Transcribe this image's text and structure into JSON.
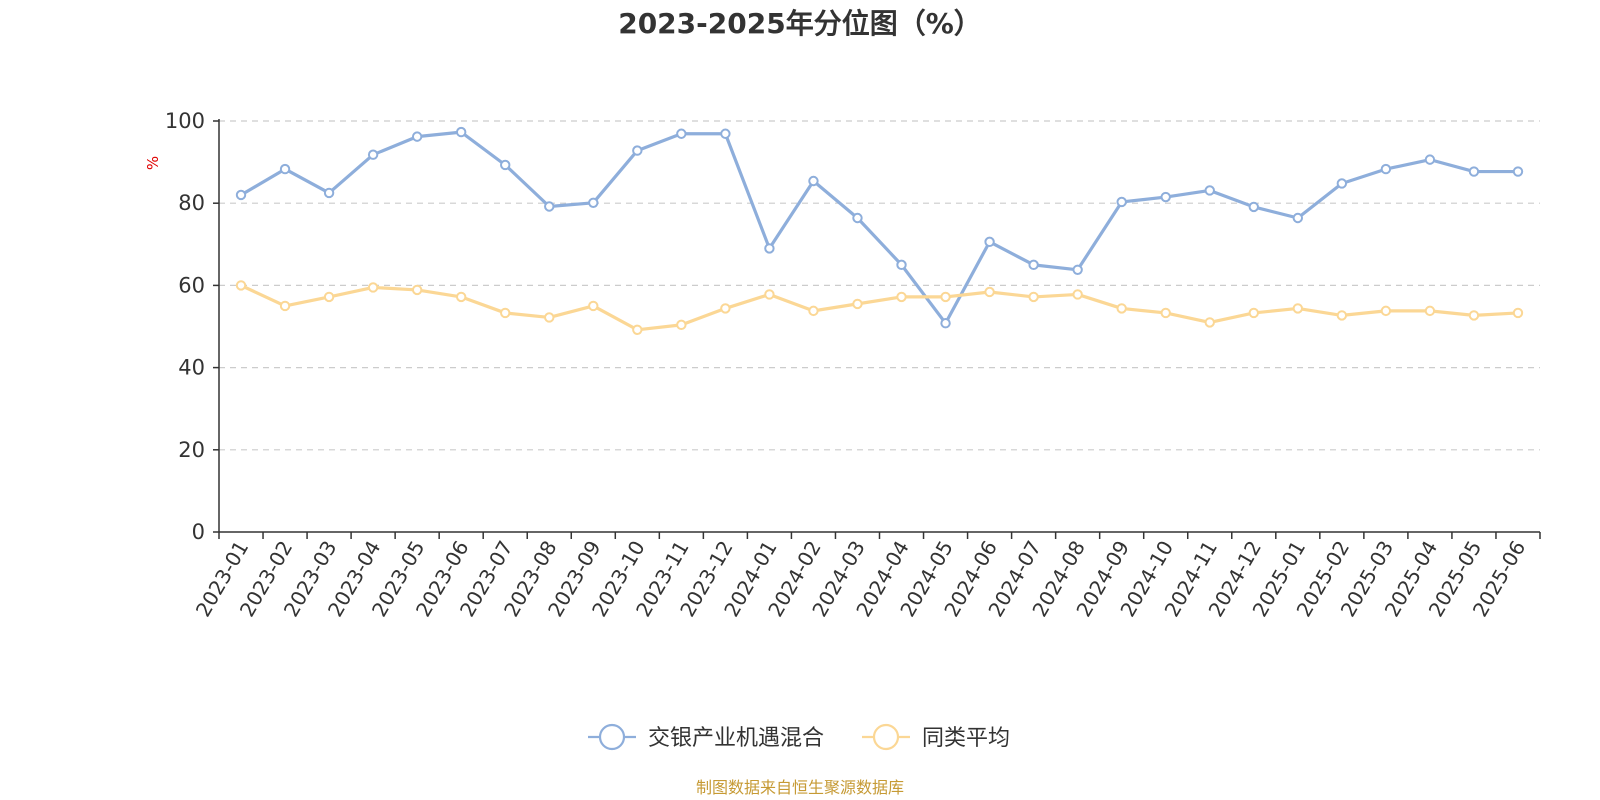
{
  "chart_data": {
    "type": "line",
    "title": "2023-2025年分位图（%）",
    "ylabel": "%",
    "xlabel": "",
    "ylim": [
      0,
      100
    ],
    "yticks": [
      "0",
      "20",
      "40",
      "60",
      "80",
      "100"
    ],
    "grid": true,
    "legend_position": "bottom-center",
    "categories": [
      "2023-01",
      "2023-02",
      "2023-03",
      "2023-04",
      "2023-05",
      "2023-06",
      "2023-07",
      "2023-08",
      "2023-09",
      "2023-10",
      "2023-11",
      "2023-12",
      "2024-01",
      "2024-02",
      "2024-03",
      "2024-04",
      "2024-05",
      "2024-06",
      "2024-07",
      "2024-08",
      "2024-09",
      "2024-10",
      "2024-11",
      "2024-12",
      "2025-01",
      "2025-02",
      "2025-03",
      "2025-04",
      "2025-05",
      "2025-06"
    ],
    "series": [
      {
        "name": "交银产业机遇混合",
        "color": "#8eaedb",
        "values": [
          82,
          88.3,
          82.5,
          91.8,
          96.2,
          97.3,
          89.3,
          79.2,
          80.1,
          92.8,
          96.9,
          96.9,
          69,
          85.4,
          76.4,
          65,
          50.8,
          70.6,
          65,
          63.8,
          80.3,
          81.5,
          83.1,
          79.1,
          76.4,
          84.8,
          88.3,
          90.6,
          87.7,
          87.7
        ]
      },
      {
        "name": "同类平均",
        "color": "#fbd795",
        "values": [
          60,
          55,
          57.2,
          59.5,
          58.9,
          57.2,
          53.3,
          52.2,
          55,
          49.2,
          50.4,
          54.4,
          57.8,
          53.8,
          55.5,
          57.2,
          57.2,
          58.4,
          57.2,
          57.8,
          54.4,
          53.3,
          51,
          53.3,
          54.4,
          52.7,
          53.8,
          53.8,
          52.7,
          53.3
        ]
      }
    ]
  },
  "footer": {
    "source_text": "制图数据来自恒生聚源数据库"
  }
}
